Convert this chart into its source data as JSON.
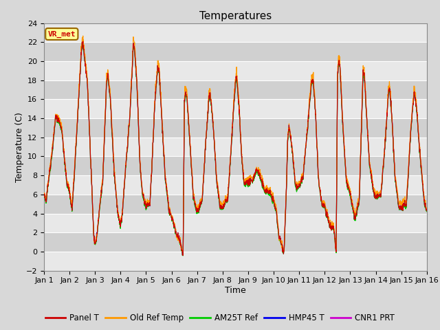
{
  "title": "Temperatures",
  "xlabel": "Time",
  "ylabel": "Temperature (C)",
  "ylim": [
    -2,
    24
  ],
  "yticks": [
    -2,
    0,
    2,
    4,
    6,
    8,
    10,
    12,
    14,
    16,
    18,
    20,
    22,
    24
  ],
  "xlim": [
    0,
    15
  ],
  "xtick_labels": [
    "Jan 1",
    "Jan 2",
    "Jan 3",
    "Jan 4",
    "Jan 5",
    "Jan 6",
    "Jan 7",
    "Jan 8",
    "Jan 9",
    "Jan 10",
    "Jan 11",
    "Jan 12",
    "Jan 13",
    "Jan 14",
    "Jan 15",
    "Jan 16"
  ],
  "bg_color": "#d8d8d8",
  "plot_bg_color_light": "#e8e8e8",
  "plot_bg_color_dark": "#d0d0d0",
  "series_colors": {
    "Panel T": "#cc0000",
    "Old Ref Temp": "#ff9900",
    "AM25T Ref": "#00cc00",
    "HMP45 T": "#0000ee",
    "CNR1 PRT": "#cc00cc"
  },
  "legend_entries": [
    "Panel T",
    "Old Ref Temp",
    "AM25T Ref",
    "HMP45 T",
    "CNR1 PRT"
  ],
  "station_label": "VR_met",
  "station_label_color": "#cc0000",
  "station_label_bg": "#ffff99",
  "station_label_border": "#996600"
}
